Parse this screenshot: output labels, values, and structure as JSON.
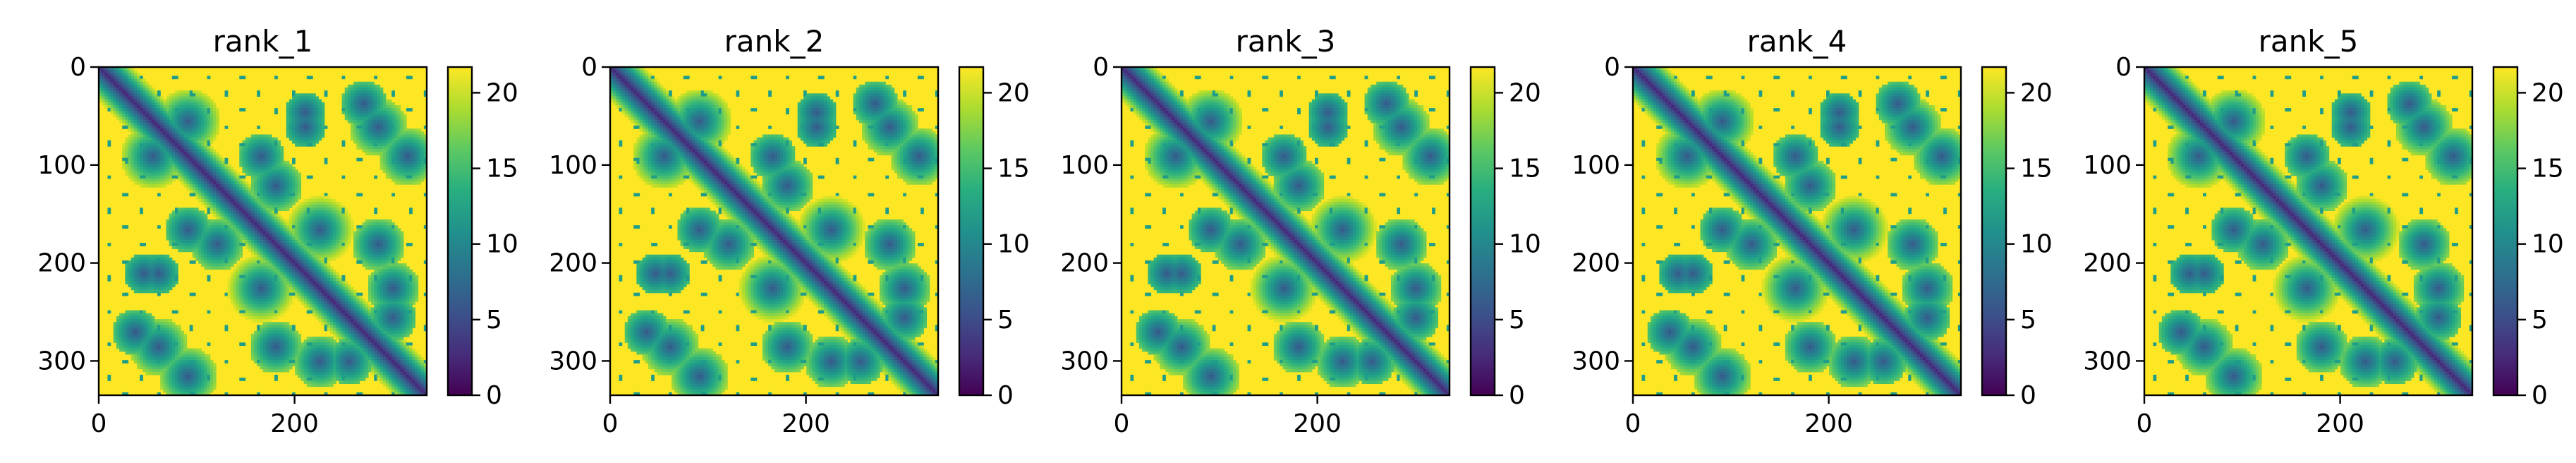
{
  "chart_data": [
    {
      "type": "heatmap",
      "title": "rank_1",
      "xlabel": "",
      "ylabel": "",
      "xlim": [
        0,
        335
      ],
      "ylim": [
        335,
        0
      ],
      "x_ticks": [
        "0",
        "200"
      ],
      "y_ticks": [
        "0",
        "100",
        "200",
        "300"
      ],
      "colorbar": {
        "range": [
          0,
          21.7
        ],
        "ticks": [
          "0",
          "5",
          "10",
          "15",
          "20"
        ],
        "colormap": "viridis"
      }
    },
    {
      "type": "heatmap",
      "title": "rank_2",
      "xlabel": "",
      "ylabel": "",
      "xlim": [
        0,
        335
      ],
      "ylim": [
        335,
        0
      ],
      "x_ticks": [
        "0",
        "200"
      ],
      "y_ticks": [
        "0",
        "100",
        "200",
        "300"
      ],
      "colorbar": {
        "range": [
          0,
          21.7
        ],
        "ticks": [
          "0",
          "5",
          "10",
          "15",
          "20"
        ],
        "colormap": "viridis"
      }
    },
    {
      "type": "heatmap",
      "title": "rank_3",
      "xlabel": "",
      "ylabel": "",
      "xlim": [
        0,
        335
      ],
      "ylim": [
        335,
        0
      ],
      "x_ticks": [
        "0",
        "200"
      ],
      "y_ticks": [
        "0",
        "100",
        "200",
        "300"
      ],
      "colorbar": {
        "range": [
          0,
          21.7
        ],
        "ticks": [
          "0",
          "5",
          "10",
          "15",
          "20"
        ],
        "colormap": "viridis"
      }
    },
    {
      "type": "heatmap",
      "title": "rank_4",
      "xlabel": "",
      "ylabel": "",
      "xlim": [
        0,
        335
      ],
      "ylim": [
        335,
        0
      ],
      "x_ticks": [
        "0",
        "200"
      ],
      "y_ticks": [
        "0",
        "100",
        "200",
        "300"
      ],
      "colorbar": {
        "range": [
          0,
          21.7
        ],
        "ticks": [
          "0",
          "5",
          "10",
          "15",
          "20"
        ],
        "colormap": "viridis"
      }
    },
    {
      "type": "heatmap",
      "title": "rank_5",
      "xlabel": "",
      "ylabel": "",
      "xlim": [
        0,
        335
      ],
      "ylim": [
        335,
        0
      ],
      "x_ticks": [
        "0",
        "200"
      ],
      "y_ticks": [
        "0",
        "100",
        "200",
        "300"
      ],
      "colorbar": {
        "range": [
          0,
          21.7
        ],
        "ticks": [
          "0",
          "5",
          "10",
          "15",
          "20"
        ],
        "colormap": "viridis"
      }
    }
  ]
}
